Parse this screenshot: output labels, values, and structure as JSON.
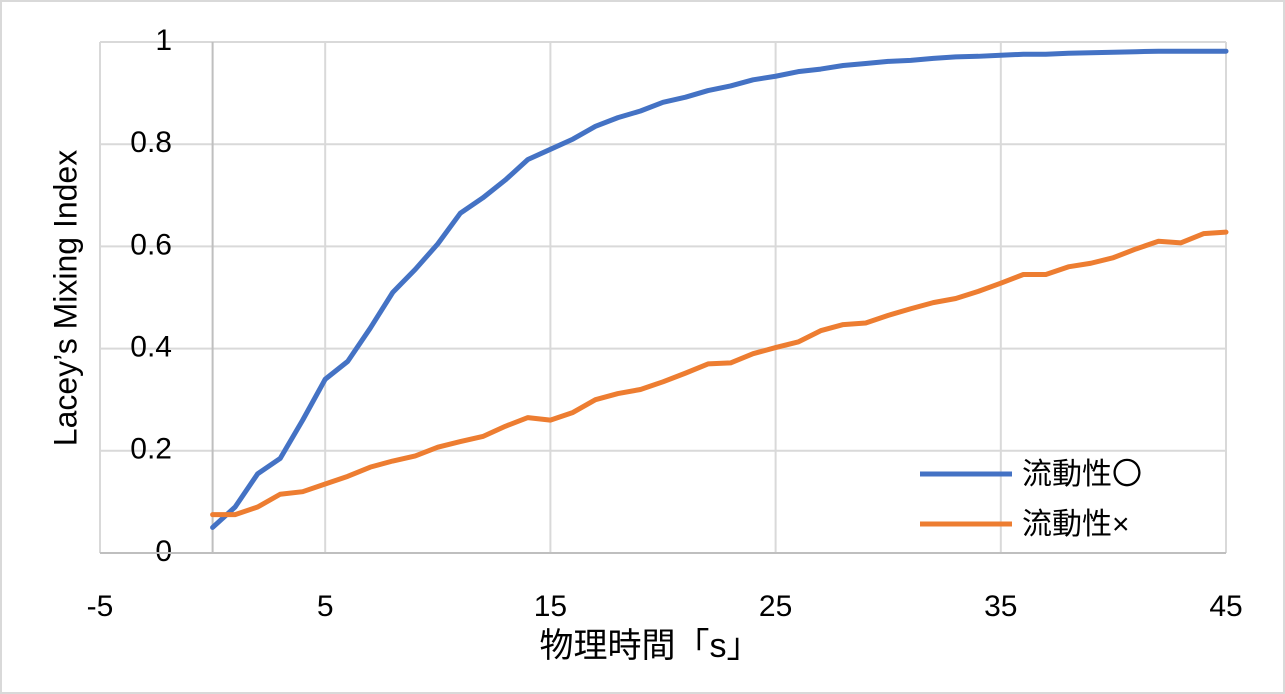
{
  "chart_data": {
    "type": "line",
    "x_label": "物理時間「s」",
    "y_label": "Lacey’s Mixing Index",
    "x": [
      0,
      1,
      2,
      3,
      4,
      5,
      6,
      7,
      8,
      9,
      10,
      11,
      12,
      13,
      14,
      15,
      16,
      17,
      18,
      19,
      20,
      21,
      22,
      23,
      24,
      25,
      26,
      27,
      28,
      29,
      30,
      31,
      32,
      33,
      34,
      35,
      36,
      37,
      38,
      39,
      40,
      41,
      42,
      43,
      44,
      45
    ],
    "series": [
      {
        "name": "流動性〇",
        "color": "#4472c4",
        "values": [
          0.05,
          0.09,
          0.155,
          0.185,
          0.26,
          0.34,
          0.375,
          0.44,
          0.51,
          0.555,
          0.605,
          0.665,
          0.695,
          0.73,
          0.77,
          0.79,
          0.81,
          0.835,
          0.852,
          0.865,
          0.882,
          0.892,
          0.905,
          0.914,
          0.926,
          0.933,
          0.942,
          0.947,
          0.954,
          0.958,
          0.962,
          0.964,
          0.968,
          0.971,
          0.972,
          0.974,
          0.976,
          0.976,
          0.978,
          0.979,
          0.98,
          0.981,
          0.982,
          0.982,
          0.982,
          0.982
        ]
      },
      {
        "name": "流動性×",
        "color": "#ed7d31",
        "values": [
          0.075,
          0.075,
          0.09,
          0.115,
          0.12,
          0.135,
          0.15,
          0.168,
          0.18,
          0.19,
          0.207,
          0.218,
          0.228,
          0.248,
          0.265,
          0.26,
          0.275,
          0.3,
          0.312,
          0.32,
          0.335,
          0.352,
          0.37,
          0.372,
          0.39,
          0.402,
          0.413,
          0.435,
          0.447,
          0.45,
          0.465,
          0.478,
          0.49,
          0.498,
          0.512,
          0.528,
          0.545,
          0.545,
          0.56,
          0.567,
          0.578,
          0.595,
          0.61,
          0.607,
          0.625,
          0.628
        ]
      }
    ],
    "xlim": [
      -5,
      45
    ],
    "xticks": [
      -5,
      5,
      15,
      25,
      35,
      45
    ],
    "ylim": [
      0,
      1
    ],
    "yticks": [
      0,
      0.2,
      0.4,
      0.6,
      0.8,
      1
    ],
    "grid": true,
    "legend": "lower right"
  }
}
